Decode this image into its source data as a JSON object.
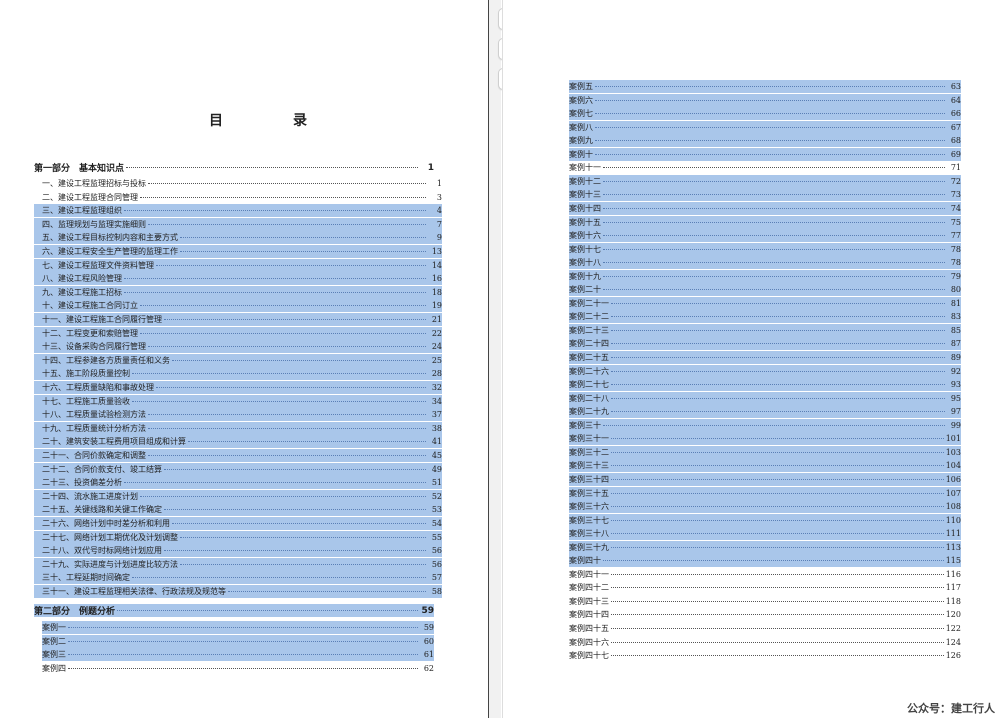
{
  "toolbar": {
    "edit_icon": "edit-icon",
    "zoom_in_icon": "zoom-in-icon",
    "more_label": "···"
  },
  "left": {
    "title": "目　录",
    "part1": {
      "label": "第一部分　基本知识点",
      "page": "1"
    },
    "items": [
      {
        "text": "一、建设工程监理招标与投标",
        "page": "1",
        "hl": false
      },
      {
        "text": "二、建设工程监理合同管理",
        "page": "3",
        "hl": false
      },
      {
        "text": "三、建设工程监理组织",
        "page": "4",
        "hl": true
      },
      {
        "text": "四、监理规划与监理实施细则",
        "page": "7",
        "hl": true
      },
      {
        "text": "五、建设工程目标控制内容和主要方式",
        "page": "9",
        "hl": true
      },
      {
        "text": "六、建设工程安全生产管理的监理工作",
        "page": "13",
        "hl": true
      },
      {
        "text": "七、建设工程监理文件资料管理",
        "page": "14",
        "hl": true
      },
      {
        "text": "八、建设工程风险管理",
        "page": "16",
        "hl": true
      },
      {
        "text": "九、建设工程施工招标",
        "page": "18",
        "hl": true
      },
      {
        "text": "十、建设工程施工合同订立",
        "page": "19",
        "hl": true
      },
      {
        "text": "十一、建设工程施工合同履行管理",
        "page": "21",
        "hl": true
      },
      {
        "text": "十二、工程变更和索赔管理",
        "page": "22",
        "hl": true
      },
      {
        "text": "十三、设备采购合同履行管理",
        "page": "24",
        "hl": true
      },
      {
        "text": "十四、工程参建各方质量责任和义务",
        "page": "25",
        "hl": true
      },
      {
        "text": "十五、施工阶段质量控制",
        "page": "28",
        "hl": true
      },
      {
        "text": "十六、工程质量缺陷和事故处理",
        "page": "32",
        "hl": true
      },
      {
        "text": "十七、工程施工质量验收",
        "page": "34",
        "hl": true
      },
      {
        "text": "十八、工程质量试验检测方法",
        "page": "37",
        "hl": true
      },
      {
        "text": "十九、工程质量统计分析方法",
        "page": "38",
        "hl": true
      },
      {
        "text": "二十、建筑安装工程费用项目组成和计算",
        "page": "41",
        "hl": true
      },
      {
        "text": "二十一、合同价款确定和调整",
        "page": "45",
        "hl": true
      },
      {
        "text": "二十二、合同价款支付、竣工结算",
        "page": "49",
        "hl": true
      },
      {
        "text": "二十三、投资偏差分析",
        "page": "51",
        "hl": true
      },
      {
        "text": "二十四、流水施工进度计划",
        "page": "52",
        "hl": true
      },
      {
        "text": "二十五、关键线路和关键工作确定",
        "page": "53",
        "hl": true
      },
      {
        "text": "二十六、网络计划中时差分析和利用",
        "page": "54",
        "hl": true
      },
      {
        "text": "二十七、网络计划工期优化及计划调整",
        "page": "55",
        "hl": true
      },
      {
        "text": "二十八、双代号时标网络计划应用",
        "page": "56",
        "hl": true
      },
      {
        "text": "二十九、实际进度与计划进度比较方法",
        "page": "56",
        "hl": true
      },
      {
        "text": "三十、工程延期时间确定",
        "page": "57",
        "hl": true
      },
      {
        "text": "三十一、建设工程监理相关法律、行政法规及规范等",
        "page": "58",
        "hl": true
      }
    ],
    "part2": {
      "label": "第二部分　例题分析",
      "page": "59"
    },
    "cases": [
      {
        "text": "案例一",
        "page": "59",
        "hl": true
      },
      {
        "text": "案例二",
        "page": "60",
        "hl": true
      },
      {
        "text": "案例三",
        "page": "61",
        "hl": true
      },
      {
        "text": "案例四",
        "page": "62",
        "hl": false
      }
    ]
  },
  "right": {
    "items": [
      {
        "text": "案例五",
        "page": "63",
        "hl": true
      },
      {
        "text": "案例六",
        "page": "64",
        "hl": true
      },
      {
        "text": "案例七",
        "page": "66",
        "hl": true
      },
      {
        "text": "案例八",
        "page": "67",
        "hl": true
      },
      {
        "text": "案例九",
        "page": "68",
        "hl": true
      },
      {
        "text": "案例十",
        "page": "69",
        "hl": true
      },
      {
        "text": "案例十一",
        "page": "71",
        "hl": false
      },
      {
        "text": "案例十二",
        "page": "72",
        "hl": true
      },
      {
        "text": "案例十三",
        "page": "73",
        "hl": true
      },
      {
        "text": "案例十四",
        "page": "74",
        "hl": true
      },
      {
        "text": "案例十五",
        "page": "75",
        "hl": true
      },
      {
        "text": "案例十六",
        "page": "77",
        "hl": true
      },
      {
        "text": "案例十七",
        "page": "78",
        "hl": true
      },
      {
        "text": "案例十八",
        "page": "78",
        "hl": true
      },
      {
        "text": "案例十九",
        "page": "79",
        "hl": true
      },
      {
        "text": "案例二十",
        "page": "80",
        "hl": true
      },
      {
        "text": "案例二十一",
        "page": "81",
        "hl": true
      },
      {
        "text": "案例二十二",
        "page": "83",
        "hl": true
      },
      {
        "text": "案例二十三",
        "page": "85",
        "hl": true
      },
      {
        "text": "案例二十四",
        "page": "87",
        "hl": true
      },
      {
        "text": "案例二十五",
        "page": "89",
        "hl": true
      },
      {
        "text": "案例二十六",
        "page": "92",
        "hl": true
      },
      {
        "text": "案例二十七",
        "page": "93",
        "hl": true
      },
      {
        "text": "案例二十八",
        "page": "95",
        "hl": true
      },
      {
        "text": "案例二十九",
        "page": "97",
        "hl": true
      },
      {
        "text": "案例三十",
        "page": "99",
        "hl": true
      },
      {
        "text": "案例三十一",
        "page": "101",
        "hl": true
      },
      {
        "text": "案例三十二",
        "page": "103",
        "hl": true
      },
      {
        "text": "案例三十三",
        "page": "104",
        "hl": true
      },
      {
        "text": "案例三十四",
        "page": "106",
        "hl": true
      },
      {
        "text": "案例三十五",
        "page": "107",
        "hl": true
      },
      {
        "text": "案例三十六",
        "page": "108",
        "hl": true
      },
      {
        "text": "案例三十七",
        "page": "110",
        "hl": true
      },
      {
        "text": "案例三十八",
        "page": "111",
        "hl": true
      },
      {
        "text": "案例三十九",
        "page": "113",
        "hl": true
      },
      {
        "text": "案例四十",
        "page": "115",
        "hl": true
      },
      {
        "text": "案例四十一",
        "page": "116",
        "hl": false
      },
      {
        "text": "案例四十二",
        "page": "117",
        "hl": false
      },
      {
        "text": "案例四十三",
        "page": "118",
        "hl": false
      },
      {
        "text": "案例四十四",
        "page": "120",
        "hl": false
      },
      {
        "text": "案例四十五",
        "page": "122",
        "hl": false
      },
      {
        "text": "案例四十六",
        "page": "124",
        "hl": false
      },
      {
        "text": "案例四十七",
        "page": "126",
        "hl": false
      }
    ]
  },
  "watermark": "公众号：建工行人",
  "colors": {
    "highlight": "#a9c6ea"
  }
}
